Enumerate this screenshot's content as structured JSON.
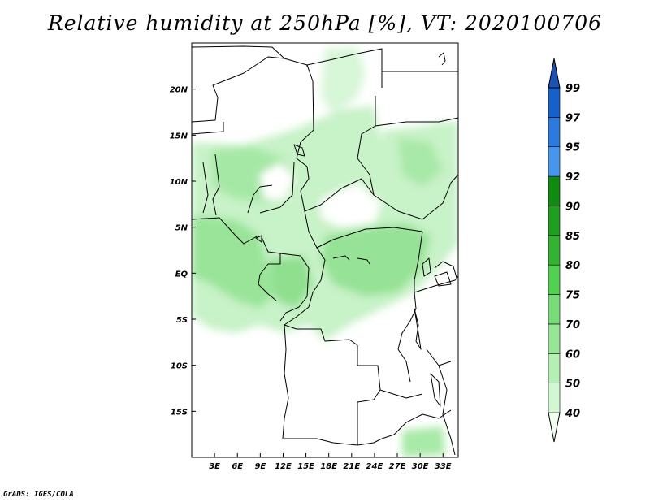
{
  "title": "Relative humidity at 250hPa [%], VT: 2020100706",
  "credit": "GrADS: IGES/COLA",
  "map": {
    "lon_range": [
      0,
      35
    ],
    "lat_range": [
      -20,
      25
    ],
    "x_ticks": [
      "3E",
      "6E",
      "9E",
      "12E",
      "15E",
      "18E",
      "21E",
      "24E",
      "27E",
      "30E",
      "33E"
    ],
    "y_ticks": [
      "20N",
      "15N",
      "10N",
      "5N",
      "EQ",
      "5S",
      "10S",
      "15S"
    ]
  },
  "colorbar": {
    "levels": [
      "40",
      "50",
      "60",
      "70",
      "75",
      "80",
      "85",
      "90",
      "92",
      "95",
      "97",
      "99"
    ],
    "colors": [
      "#f0fff0",
      "#d2f8d2",
      "#b4f0b4",
      "#96e696",
      "#78dc78",
      "#50d250",
      "#32b432",
      "#1ea01e",
      "#0f8c0f",
      "#4696ee",
      "#2a7ae0",
      "#1460cc",
      "#1e50b4"
    ]
  }
}
